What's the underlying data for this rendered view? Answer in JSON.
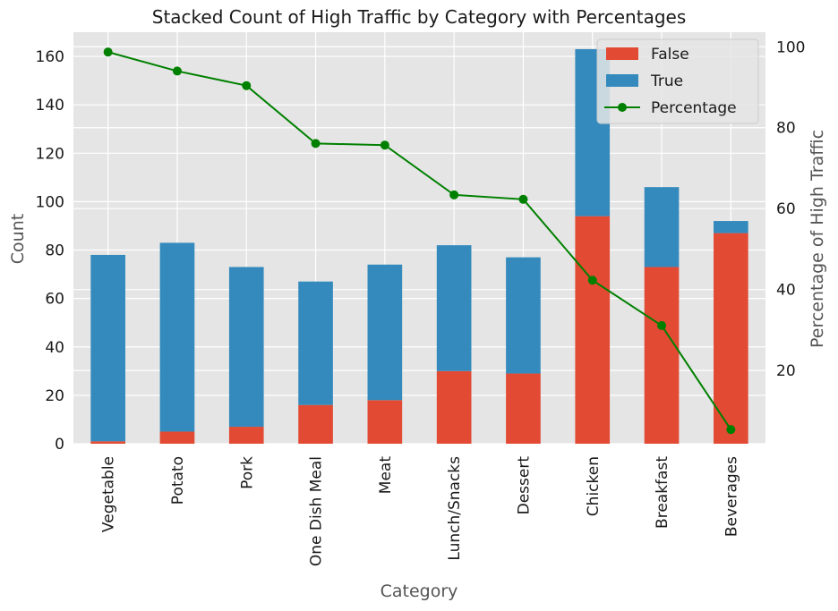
{
  "chart_data": {
    "type": "bar",
    "stacked": true,
    "title": "Stacked Count of High Traffic by Category with Percentages",
    "xlabel": "Category",
    "ylabel": "Count",
    "y2label": "Percentage of High Traffic",
    "categories": [
      "Vegetable",
      "Potato",
      "Pork",
      "One Dish Meal",
      "Meat",
      "Lunch/Snacks",
      "Dessert",
      "Chicken",
      "Breakfast",
      "Beverages"
    ],
    "series": [
      {
        "name": "False",
        "color": "#e24a33",
        "values": [
          1,
          5,
          7,
          16,
          18,
          30,
          29,
          94,
          73,
          87
        ]
      },
      {
        "name": "True",
        "color": "#348abd",
        "values": [
          77,
          78,
          66,
          51,
          56,
          52,
          48,
          69,
          33,
          5
        ]
      }
    ],
    "line_series": {
      "name": "Percentage",
      "color": "#008000",
      "axis": "right",
      "values": [
        98.7,
        94.0,
        90.4,
        76.1,
        75.7,
        63.4,
        62.3,
        42.3,
        31.1,
        5.4
      ]
    },
    "ylim": [
      0,
      170
    ],
    "y2lim": [
      1.9,
      103.6
    ],
    "yticks": [
      0,
      20,
      40,
      60,
      80,
      100,
      120,
      140,
      160
    ],
    "y2ticks": [
      20,
      40,
      60,
      80,
      100
    ],
    "legend_position": "top-right",
    "grid": true,
    "plot_background": "#e5e5e5"
  }
}
